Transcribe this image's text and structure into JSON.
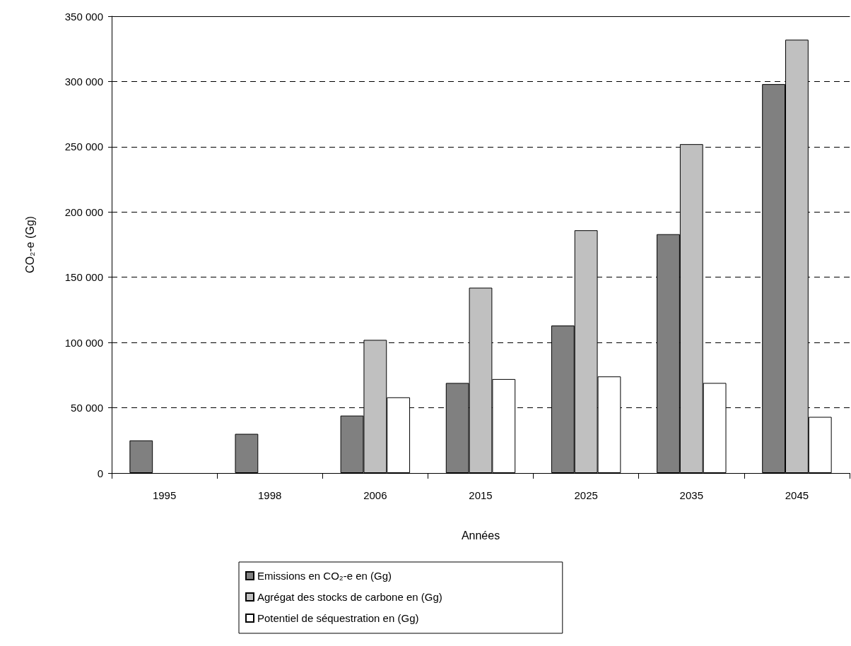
{
  "chart_data": {
    "type": "bar",
    "xlabel": "Années",
    "ylabel": "CO₂-e (Gg)",
    "categories": [
      "1995",
      "1998",
      "2006",
      "2015",
      "2025",
      "2035",
      "2045"
    ],
    "series": [
      {
        "name": "Emissions en CO₂-e en (Gg)",
        "color": "#808080",
        "values": [
          25000,
          30000,
          44000,
          69000,
          113000,
          183000,
          298000
        ]
      },
      {
        "name": "Agrégat des stocks de carbone en (Gg)",
        "color": "#c0c0c0",
        "values": [
          null,
          null,
          102000,
          142000,
          186000,
          252000,
          332000
        ]
      },
      {
        "name": "Potentiel de séquestration en (Gg)",
        "color": "#ffffff",
        "values": [
          null,
          null,
          58000,
          72000,
          74000,
          69000,
          43000
        ]
      }
    ],
    "ylim": [
      0,
      350000
    ],
    "yticks": [
      0,
      {
        "value": 50000,
        "label": "50 000"
      },
      {
        "value": 100000,
        "label": "100 000"
      },
      {
        "value": 150000,
        "label": "150 000"
      },
      {
        "value": 200000,
        "label": "200 000"
      },
      {
        "value": 250000,
        "label": "250 000"
      },
      {
        "value": 300000,
        "label": "300 000"
      },
      {
        "value": 350000,
        "label": "350 000"
      }
    ],
    "grid": "y",
    "legend": "bottom"
  }
}
